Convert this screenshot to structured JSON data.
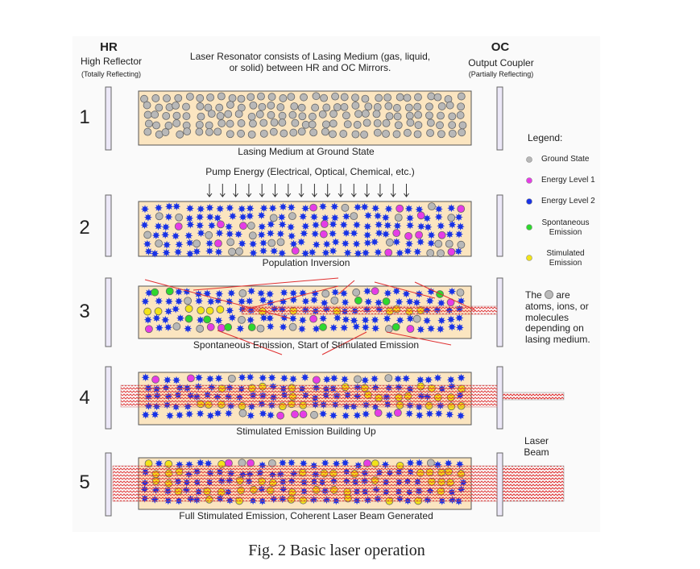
{
  "header": {
    "hr_title": "HR",
    "hr_name": "High Reflector",
    "hr_note": "(Totally Reflecting)",
    "description": "Laser Resonator consists of Lasing Medium (gas, liquid, or solid) between HR and OC Mirrors.",
    "oc_title": "OC",
    "oc_name": "Output Coupler",
    "oc_note": "(Partially Reflecting)"
  },
  "stages": [
    {
      "number": "1",
      "caption": "Lasing Medium at Ground State"
    },
    {
      "number": "2",
      "caption": "Population Inversion"
    },
    {
      "number": "3",
      "caption": "Spontaneous Emission, Start of Stimulated Emission"
    },
    {
      "number": "4",
      "caption": "Stimulated Emission Building Up"
    },
    {
      "number": "5",
      "caption": "Full Stimulated Emission, Coherent Laser Beam Generated"
    }
  ],
  "pump_label": "Pump Energy (Electrical, Optical, Chemical, etc.)",
  "legend": {
    "title": "Legend:",
    "items": [
      "Ground State",
      "Energy Level 1",
      "Energy Level 2",
      "Spontaneous Emission",
      "Stimulated Emission"
    ]
  },
  "note": [
    "The",
    "are atoms, ions, or molecules depending on lasing medium."
  ],
  "beam_label": "Laser Beam",
  "figure_caption": "Fig. 2 Basic laser operation"
}
